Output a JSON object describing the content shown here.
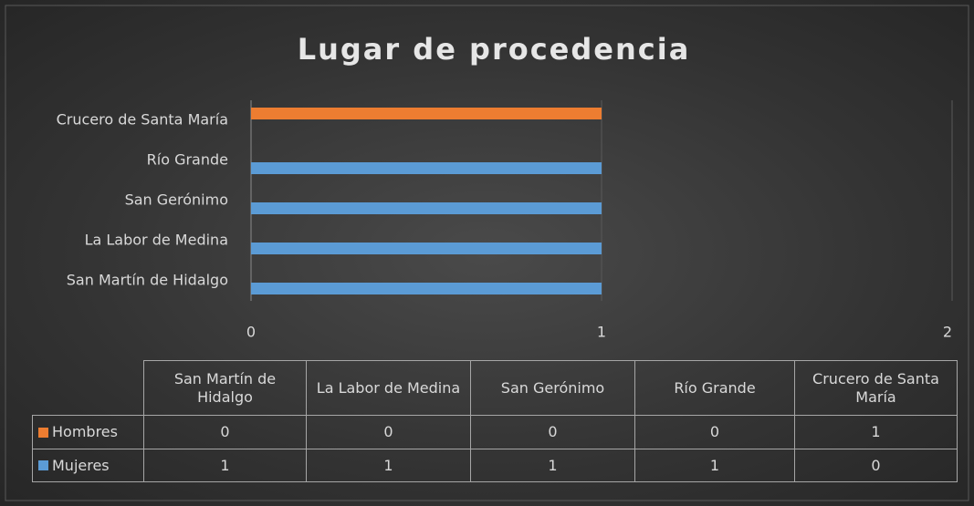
{
  "chart_data": {
    "type": "bar",
    "orientation": "horizontal",
    "title": "Lugar de procedencia",
    "categories": [
      "San Martín de Hidalgo",
      "La Labor de Medina",
      "San Gerónimo",
      "Río Grande",
      "Crucero de Santa María"
    ],
    "series": [
      {
        "name": "Hombres",
        "color": "#ed7d31",
        "values": [
          0,
          0,
          0,
          0,
          1
        ]
      },
      {
        "name": "Mujeres",
        "color": "#5b9bd5",
        "values": [
          1,
          1,
          1,
          1,
          0
        ]
      }
    ],
    "xlim": [
      0,
      2
    ],
    "xticks": [
      0,
      1,
      2
    ],
    "grid": true,
    "data_table": true
  }
}
